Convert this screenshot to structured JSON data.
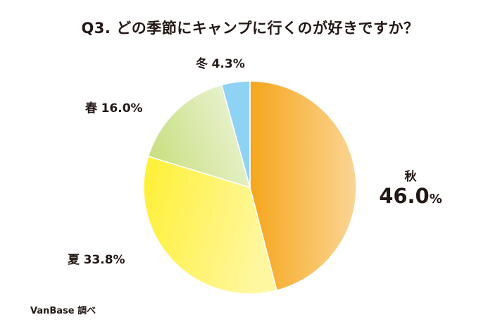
{
  "chart_data": {
    "type": "pie",
    "title": "Q3. どの季節にキャンプに行くのが好きですか？",
    "categories": [
      "秋",
      "夏",
      "春",
      "冬"
    ],
    "values": [
      46.0,
      33.8,
      16.0,
      4.3
    ],
    "value_labels": [
      "46.0",
      "33.8%",
      "16.0%",
      "4.3%"
    ],
    "value_unit": "%",
    "colors": [
      [
        "#f5a61c",
        "#fbd595"
      ],
      [
        "#fff03a",
        "#fff7a0"
      ],
      [
        "#c6dd7a",
        "#eaf3d4"
      ],
      [
        "#8fd3f4",
        "#8fd3f4"
      ]
    ],
    "start_angle_deg": 0,
    "direction": "clockwise"
  },
  "source": "VanBase 調べ"
}
